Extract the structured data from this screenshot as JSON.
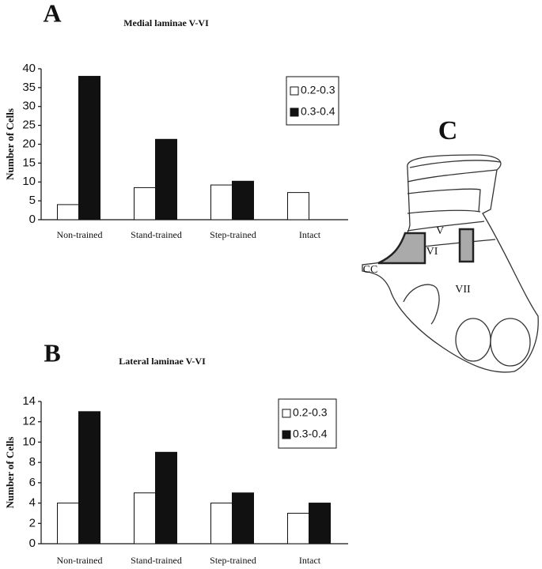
{
  "chart_data": [
    {
      "type": "bar",
      "panel": "A",
      "title": "Medial laminae V-VI",
      "y_label": "Number of Cells",
      "categories": [
        "Non-trained",
        "Stand-trained",
        "Step-trained",
        "Intact"
      ],
      "series": [
        {
          "name": "0.2-0.3",
          "color": "#ffffff",
          "values": [
            4,
            8.5,
            9.2,
            7.2
          ]
        },
        {
          "name": "0.3-0.4",
          "color": "#111111",
          "values": [
            38,
            21.3,
            10.2,
            null
          ]
        }
      ],
      "ylim": [
        0,
        40
      ],
      "yticks": [
        0,
        5,
        10,
        15,
        20,
        25,
        30,
        35,
        40
      ],
      "legend": "upper-right"
    },
    {
      "type": "bar",
      "panel": "B",
      "title": "Lateral laminae V-VI",
      "y_label": "Number of Cells",
      "categories": [
        "Non-trained",
        "Stand-trained",
        "Step-trained",
        "Intact"
      ],
      "series": [
        {
          "name": "0.2-0.3",
          "color": "#ffffff",
          "values": [
            4,
            5,
            4,
            3
          ]
        },
        {
          "name": "0.3-0.4",
          "color": "#111111",
          "values": [
            13,
            9,
            5,
            4
          ]
        }
      ],
      "ylim": [
        0,
        14
      ],
      "yticks": [
        0,
        2,
        4,
        6,
        8,
        10,
        12,
        14
      ],
      "legend": "upper-right"
    }
  ],
  "diagram": {
    "panel": "C",
    "labels": [
      "V",
      "VI",
      "VII",
      "CC"
    ]
  }
}
